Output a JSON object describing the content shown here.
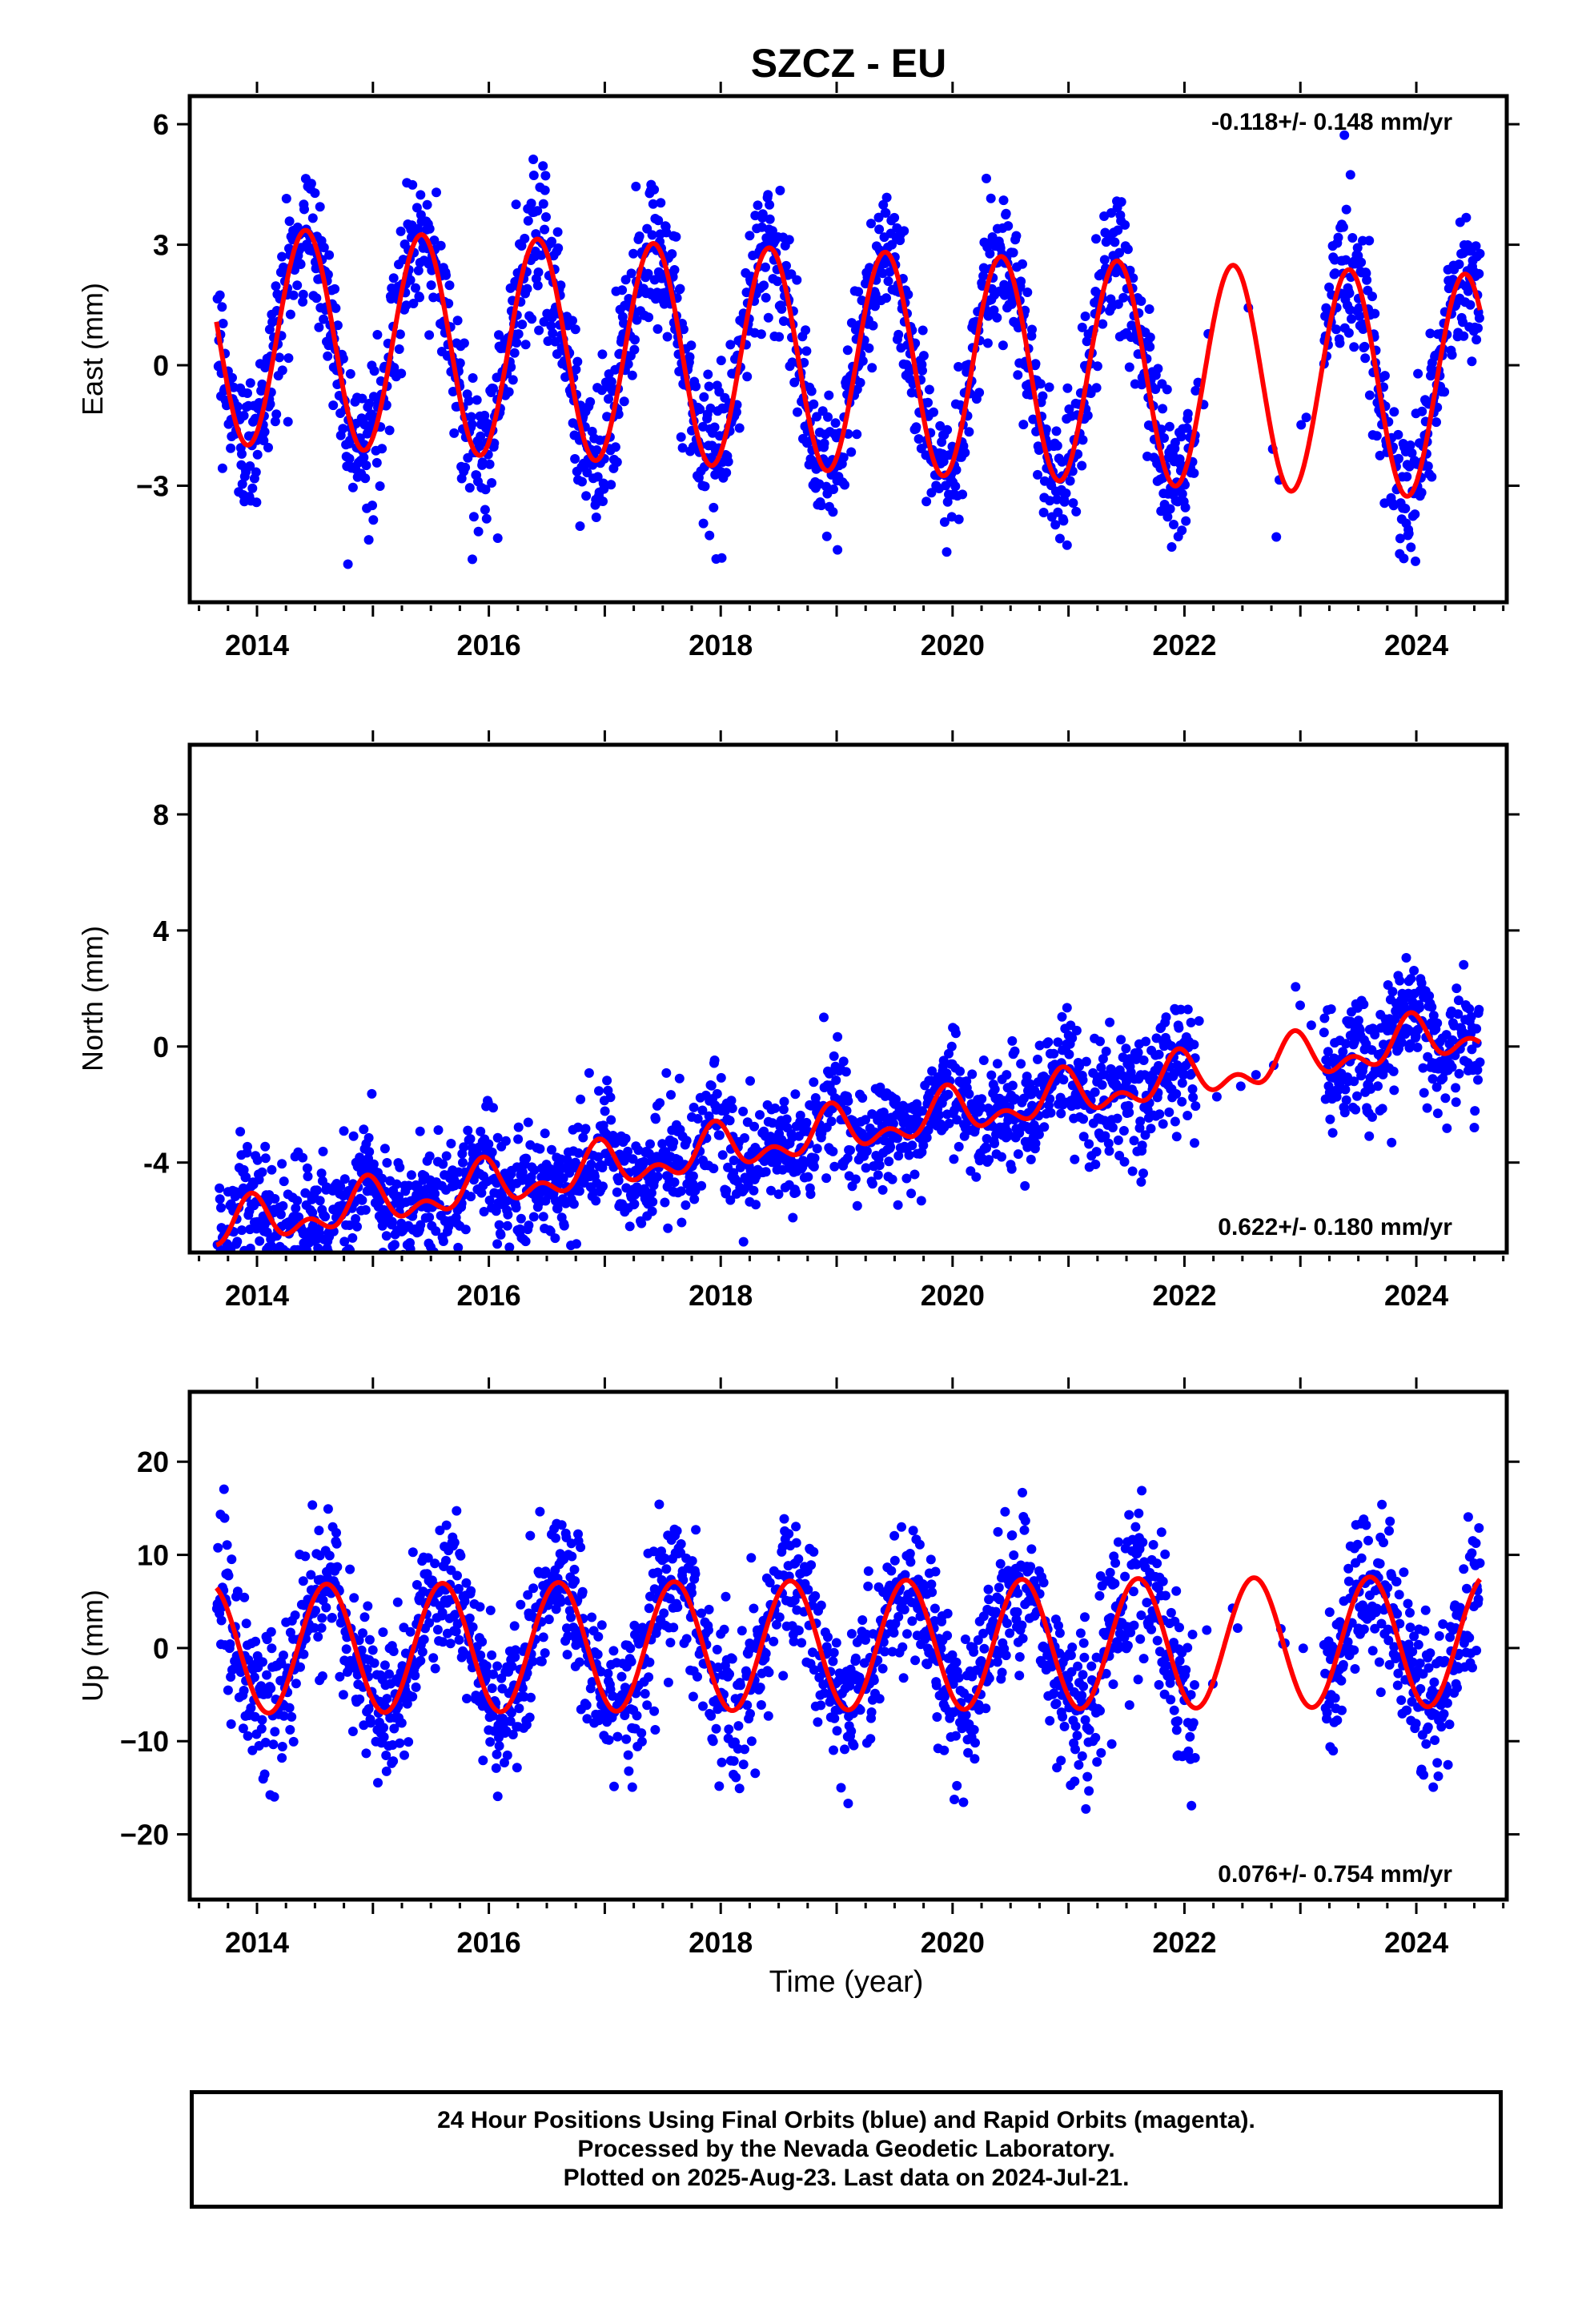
{
  "title": "SZCZ - EU",
  "colors": {
    "data": "#0000ff",
    "model": "#ff0000",
    "axis": "#000000"
  },
  "x_tick_labels": [
    "2014",
    "2016",
    "2018",
    "2020",
    "2022",
    "2024"
  ],
  "x_label": "Time (year)",
  "footer": {
    "line1": "24 Hour Positions Using Final Orbits (blue) and Rapid Orbits (magenta).",
    "line2": "Processed by the Nevada Geodetic Laboratory.",
    "line3": "Plotted on 2025-Aug-23. Last data on 2024-Jul-21."
  },
  "chart_data": [
    {
      "type": "scatter",
      "ylabel": "East (mm)",
      "rate_label": "-0.118+/- 0.148 mm/yr",
      "rate_position": "top-right",
      "xlim": [
        2013.42,
        2024.78
      ],
      "ylim": [
        -5.9,
        6.7
      ],
      "yticks": [
        -3,
        0,
        3,
        6
      ],
      "ytick_labels": [
        "−3",
        "0",
        "3",
        "6"
      ],
      "data_range": [
        2013.65,
        2024.55
      ],
      "gap": [
        2022.1,
        2023.2
      ],
      "noise_sd": 0.9,
      "series": [
        {
          "role": "data",
          "color": "#0000ff"
        },
        {
          "role": "model",
          "color": "#ff0000",
          "model": {
            "offset": 0.1,
            "trend": -0.118,
            "annual_amp": [
              2.7,
              2.8
            ],
            "annual_peak": 0.42,
            "semiannual_amp": 0.0
          }
        }
      ]
    },
    {
      "type": "scatter",
      "ylabel": "North (mm)",
      "rate_label": "0.622+/- 0.180 mm/yr",
      "rate_position": "bottom-right",
      "xlim": [
        2013.42,
        2024.78
      ],
      "ylim": [
        -7.1,
        10.4
      ],
      "yticks": [
        -4,
        0,
        4,
        8
      ],
      "ytick_labels": [
        "-4",
        "0",
        "4",
        "8"
      ],
      "data_range": [
        2013.65,
        2024.55
      ],
      "gap": [
        2022.1,
        2023.2
      ],
      "noise_sd": 1.0,
      "series": [
        {
          "role": "data",
          "color": "#0000ff"
        },
        {
          "role": "model",
          "color": "#ff0000",
          "model": {
            "offset": -2.9,
            "trend": 0.622,
            "annual_amp": [
              0.6,
              0.6
            ],
            "annual_peak": 0.95,
            "semiannual_amp": 0.45
          }
        }
      ]
    },
    {
      "type": "scatter",
      "ylabel": "Up (mm)",
      "rate_label": "0.076+/- 0.754 mm/yr",
      "rate_position": "bottom-right",
      "xlim": [
        2013.42,
        2024.78
      ],
      "ylim": [
        -27,
        27.5
      ],
      "yticks": [
        -20,
        -10,
        0,
        10,
        20
      ],
      "ytick_labels": [
        "−20",
        "−10",
        "0",
        "10",
        "20"
      ],
      "data_range": [
        2013.65,
        2024.55
      ],
      "gap": [
        2022.1,
        2023.2
      ],
      "noise_sd": 4.0,
      "series": [
        {
          "role": "data",
          "color": "#0000ff"
        },
        {
          "role": "model",
          "color": "#ff0000",
          "model": {
            "offset": 0.3,
            "trend": 0.076,
            "annual_amp": [
              6.9,
              7.0
            ],
            "annual_peak": 0.6,
            "semiannual_amp": 0.0
          }
        }
      ]
    }
  ]
}
